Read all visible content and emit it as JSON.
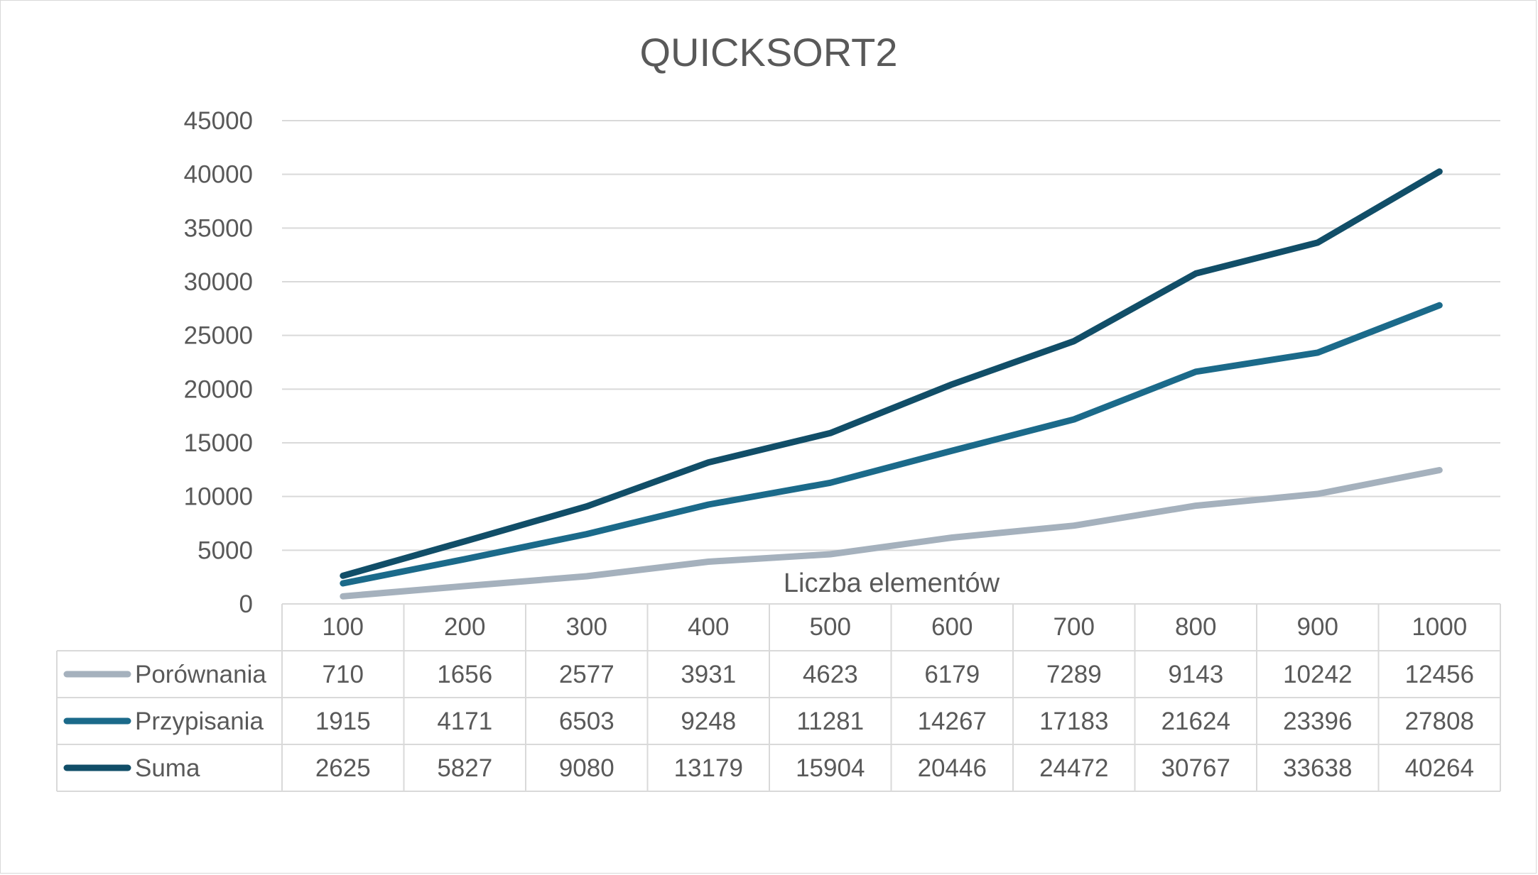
{
  "chart_data": {
    "type": "line",
    "title": "QUICKSORT2",
    "xlabel": "Liczba elementów",
    "ylabel": "",
    "categories": [
      "100",
      "200",
      "300",
      "400",
      "500",
      "600",
      "700",
      "800",
      "900",
      "1000"
    ],
    "ylim": [
      0,
      45000
    ],
    "yticks": [
      "0",
      "5000",
      "10000",
      "15000",
      "20000",
      "25000",
      "30000",
      "35000",
      "40000",
      "45000"
    ],
    "grid": true,
    "legend": "data-table",
    "series": [
      {
        "name": "Porównania",
        "color": "#a5b1bd",
        "values": [
          710,
          1656,
          2577,
          3931,
          4623,
          6179,
          7289,
          9143,
          10242,
          12456
        ]
      },
      {
        "name": "Przypisania",
        "color": "#1b6a8a",
        "values": [
          1915,
          4171,
          6503,
          9248,
          11281,
          14267,
          17183,
          21624,
          23396,
          27808
        ]
      },
      {
        "name": "Suma",
        "color": "#114e68",
        "values": [
          2625,
          5827,
          9080,
          13179,
          15904,
          20446,
          24472,
          30767,
          33638,
          40264
        ]
      }
    ]
  }
}
